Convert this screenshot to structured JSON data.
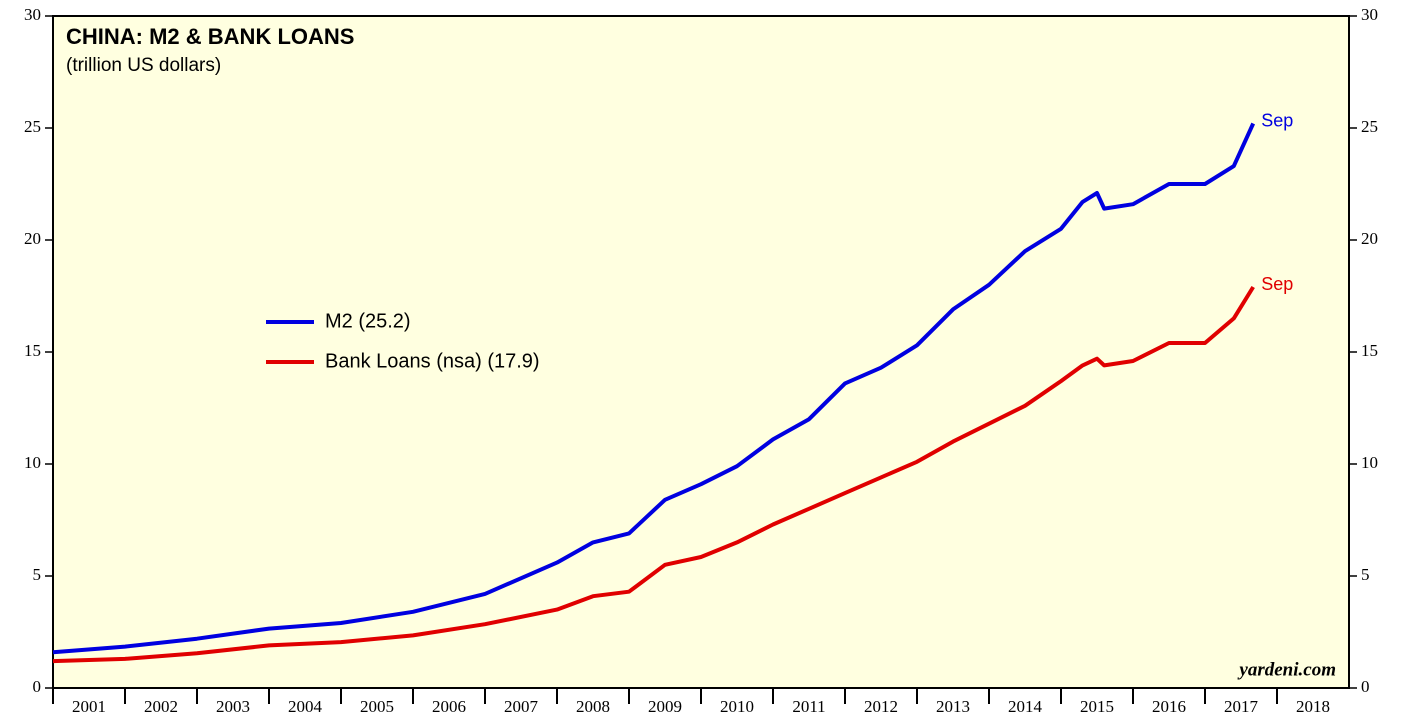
{
  "chart_data": {
    "type": "line",
    "title": "CHINA: M2 & BANK LOANS",
    "subtitle": "(trillion US dollars)",
    "source": "yardeni.com",
    "x": [
      2001.0,
      2002.0,
      2003.0,
      2004.0,
      2005.0,
      2006.0,
      2007.0,
      2008.0,
      2008.5,
      2009.0,
      2009.5,
      2010.0,
      2010.5,
      2011.0,
      2011.5,
      2012.0,
      2012.5,
      2013.0,
      2013.5,
      2014.0,
      2014.5,
      2015.0,
      2015.3,
      2015.5,
      2015.6,
      2016.0,
      2016.5,
      2017.0,
      2017.4,
      2017.67
    ],
    "series": [
      {
        "name": "M2 (25.2)",
        "color": "#0000e0",
        "end_label": "Sep",
        "values": [
          1.6,
          1.85,
          2.2,
          2.65,
          2.9,
          3.4,
          4.2,
          5.6,
          6.5,
          6.9,
          8.4,
          9.1,
          9.9,
          11.1,
          12.0,
          13.6,
          14.3,
          15.3,
          16.9,
          18.0,
          19.5,
          20.5,
          21.7,
          22.1,
          21.4,
          21.6,
          22.5,
          22.5,
          23.3,
          25.2
        ]
      },
      {
        "name": "Bank Loans (nsa) (17.9)",
        "color": "#e00000",
        "end_label": "Sep",
        "values": [
          1.2,
          1.3,
          1.55,
          1.9,
          2.05,
          2.35,
          2.85,
          3.5,
          4.1,
          4.3,
          5.5,
          5.85,
          6.5,
          7.3,
          8.0,
          8.7,
          9.4,
          10.1,
          11.0,
          11.8,
          12.6,
          13.7,
          14.4,
          14.7,
          14.4,
          14.6,
          15.4,
          15.4,
          16.5,
          17.9
        ]
      }
    ],
    "xlim": [
      2001,
      2019
    ],
    "xticks": [
      2001,
      2002,
      2003,
      2004,
      2005,
      2006,
      2007,
      2008,
      2009,
      2010,
      2011,
      2012,
      2013,
      2014,
      2015,
      2016,
      2017,
      2018
    ],
    "ylim": [
      0,
      30
    ],
    "yticks": [
      0,
      5,
      10,
      15,
      20,
      25,
      30
    ],
    "y2lim": [
      0,
      30
    ],
    "y2ticks": [
      0,
      5,
      10,
      15,
      20,
      25,
      30
    ],
    "background": "#ffffe0"
  }
}
